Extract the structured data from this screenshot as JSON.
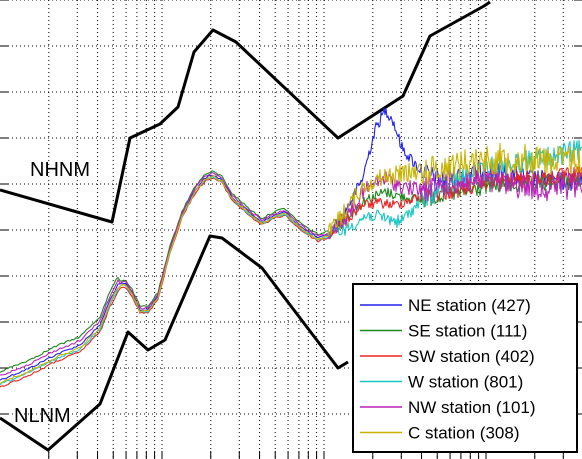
{
  "chart_data": {
    "type": "line",
    "title": "",
    "xlabel": "",
    "ylabel": "",
    "x_scale": "log",
    "grid": true,
    "legend_placement": "bottom-right",
    "reference_curves": [
      {
        "name": "NHNM",
        "color": "#000000"
      },
      {
        "name": "NLNM",
        "color": "#000000"
      }
    ],
    "series": [
      {
        "name": "NE station (427)",
        "color": "#2222ee"
      },
      {
        "name": "SE station (111)",
        "color": "#1a8a1a"
      },
      {
        "name": "SW station (402)",
        "color": "#ee2222"
      },
      {
        "name": "W station (801)",
        "color": "#19c6c6"
      },
      {
        "name": "NW station (101)",
        "color": "#bb22bb"
      },
      {
        "name": "C station (308)",
        "color": "#c8b400"
      }
    ]
  }
}
